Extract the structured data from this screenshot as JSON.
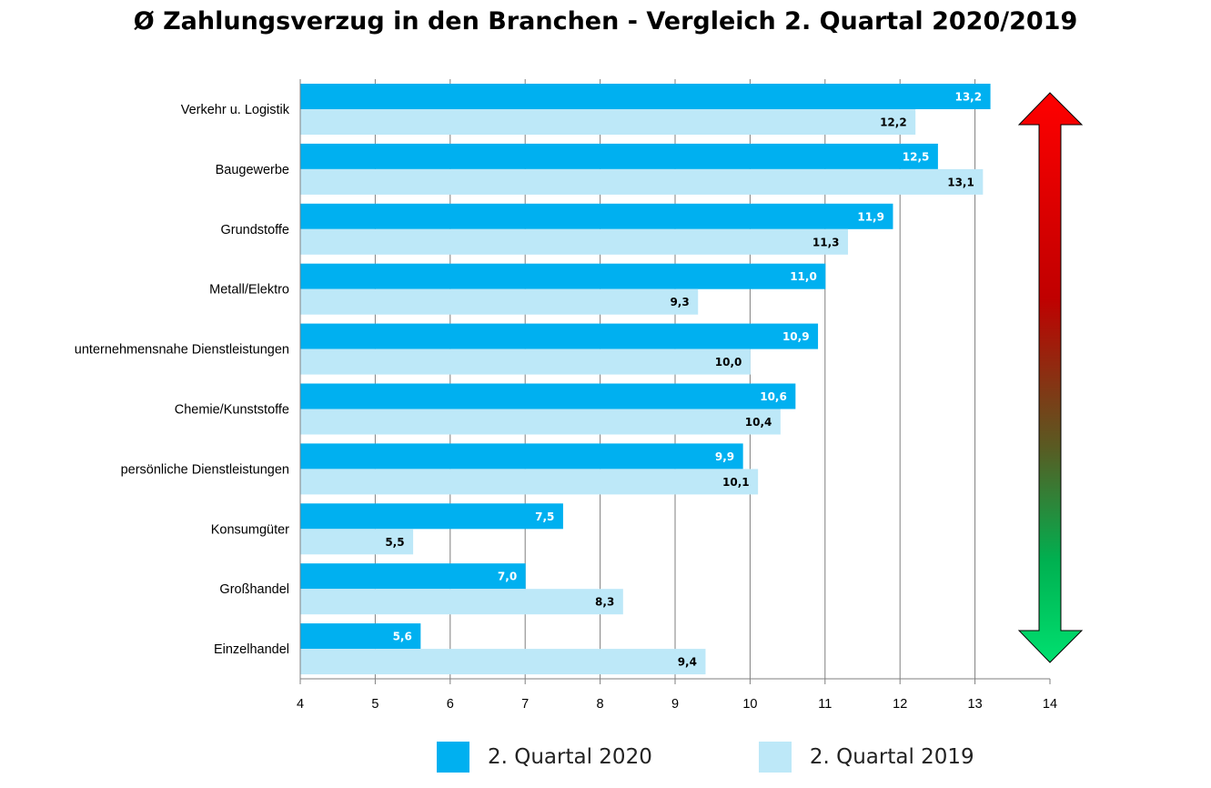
{
  "chart_data": {
    "type": "bar",
    "orientation": "horizontal",
    "title": "Ø Zahlungsverzug in den Branchen - Vergleich 2. Quartal 2020/2019",
    "categories": [
      "Verkehr u. Logistik",
      "Baugewerbe",
      "Grundstoffe",
      "Metall/Elektro",
      "unternehmensnahe Dienstleistungen",
      "Chemie/Kunststoffe",
      "persönliche Dienstleistungen",
      "Konsumgüter",
      "Großhandel",
      "Einzelhandel"
    ],
    "series": [
      {
        "name": "2. Quartal 2020",
        "color": "#00b0f0",
        "label_color": "#ffffff",
        "values": [
          13.2,
          12.5,
          11.9,
          11.0,
          10.9,
          10.6,
          9.9,
          7.5,
          7.0,
          5.6
        ],
        "labels": [
          "13,2",
          "12,5",
          "11,9",
          "11,0",
          "10,9",
          "10,6",
          "9,9",
          "7,5",
          "7,0",
          "5,6"
        ]
      },
      {
        "name": "2. Quartal 2019",
        "color": "#bde8f8",
        "label_color": "#000000",
        "values": [
          12.2,
          13.1,
          11.3,
          9.3,
          10.0,
          10.4,
          10.1,
          5.5,
          8.3,
          9.4
        ],
        "labels": [
          "12,2",
          "13,1",
          "11,3",
          "9,3",
          "10,0",
          "10,4",
          "10,1",
          "5,5",
          "8,3",
          "9,4"
        ]
      }
    ],
    "xlim": [
      4,
      14
    ],
    "xticks": [
      "4",
      "5",
      "6",
      "7",
      "8",
      "9",
      "10",
      "11",
      "12",
      "13",
      "14"
    ],
    "grid": true,
    "legend_position": "bottom",
    "annotation": "double-headed vertical arrow, red at top to green at bottom"
  },
  "colors": {
    "arrow_top": "#ff0000",
    "arrow_mid": "#c00000",
    "arrow_bottom": "#00e070",
    "grid": "#7f7f7f"
  }
}
